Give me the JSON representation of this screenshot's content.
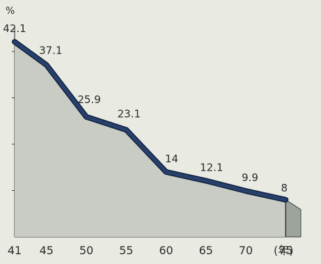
{
  "chart_data": {
    "type": "area",
    "ylabel": "%",
    "xunit": "(年)",
    "x": [
      41,
      45,
      50,
      55,
      60,
      65,
      70,
      75
    ],
    "values": [
      42.1,
      37.1,
      25.9,
      23.1,
      14,
      12.1,
      9.9,
      8
    ],
    "value_labels": [
      "42.1",
      "37.1",
      "25.9",
      "23.1",
      "14",
      "12.1",
      "9.9",
      "8"
    ],
    "tick_labels": [
      "41",
      "45",
      "50",
      "55",
      "60",
      "65",
      "70",
      "75"
    ],
    "ylim": [
      0,
      45
    ],
    "colors": {
      "background": "#e9ebe3",
      "area": "#c9ccc5",
      "line": "#27406c",
      "axis": "#444444"
    }
  }
}
